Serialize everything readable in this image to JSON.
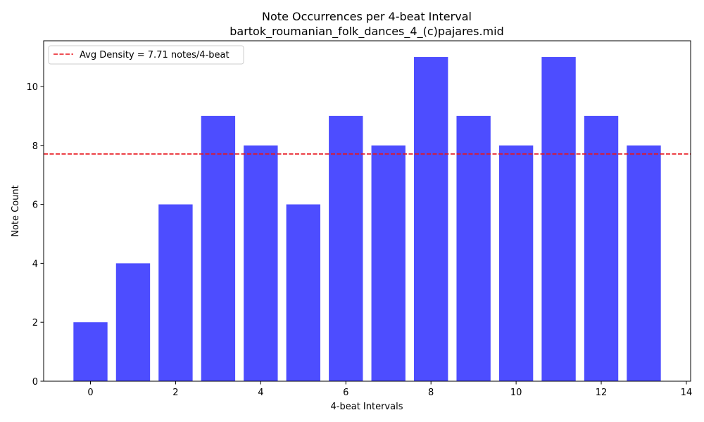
{
  "chart_data": {
    "type": "bar",
    "title": "Note Occurrences per 4-beat Interval",
    "subtitle": "bartok_roumanian_folk_dances_4_(c)pajares.mid",
    "xlabel": "4-beat Intervals",
    "ylabel": "Note Count",
    "categories": [
      0,
      1,
      2,
      3,
      4,
      5,
      6,
      7,
      8,
      9,
      10,
      11,
      12,
      13
    ],
    "values": [
      2,
      4,
      6,
      9,
      8,
      6,
      9,
      8,
      11,
      9,
      8,
      11,
      9,
      8
    ],
    "xlim": [
      -1.1,
      14.1
    ],
    "ylim": [
      0,
      11.55
    ],
    "x_ticks": [
      0,
      2,
      4,
      6,
      8,
      10,
      12,
      14
    ],
    "y_ticks": [
      0,
      2,
      4,
      6,
      8,
      10
    ],
    "bar_color": "#4d4dff",
    "reference_line": {
      "value": 7.71,
      "label": "Avg Density = 7.71 notes/4-beat",
      "color": "#e8141c",
      "style": "dashed"
    },
    "legend": {
      "placement": "top-left",
      "entries": [
        "Avg Density = 7.71 notes/4-beat"
      ]
    },
    "grid": false
  }
}
